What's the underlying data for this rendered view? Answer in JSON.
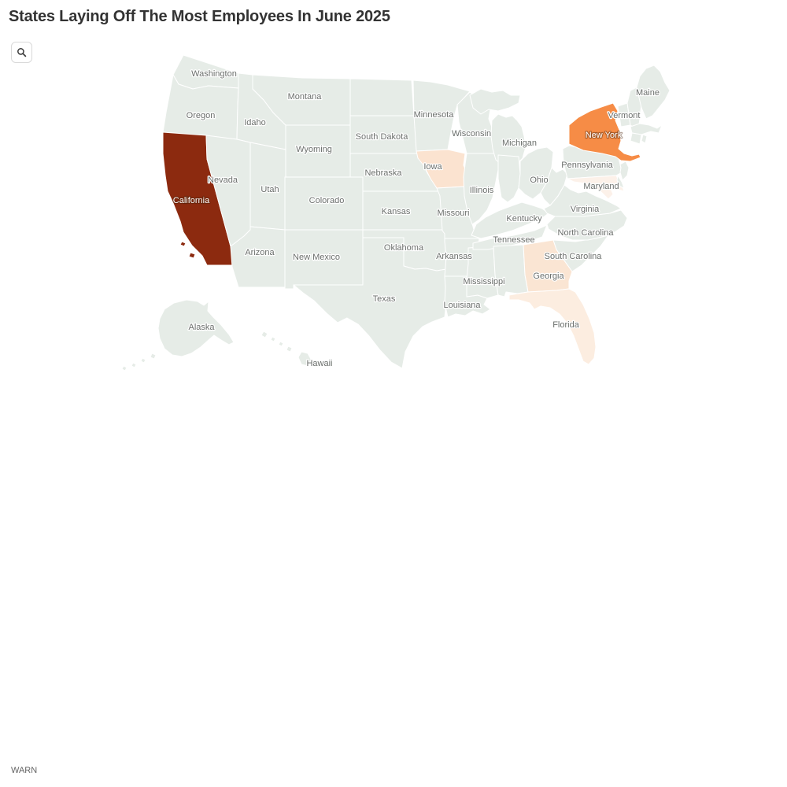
{
  "title": "States Laying Off The Most Employees In June 2025",
  "toolbar": {
    "search_icon": "magnifier"
  },
  "source": {
    "label": "WARN"
  },
  "colors": {
    "title": "#333333",
    "source_text": "#636363",
    "map_default_fill": "#E6ECE7",
    "map_border": "#FFFFFF",
    "label_text": "#6A6E6B",
    "label_halo": "#FFFFFF",
    "highlight_label_text": "#FFFFFF",
    "highlight_label_halo": "rgba(70,30,5,0.4)"
  },
  "map": {
    "states": [
      {
        "id": "WA",
        "label": "Washington"
      },
      {
        "id": "OR",
        "label": "Oregon"
      },
      {
        "id": "CA",
        "label": "California",
        "fill": "#8C2A0F",
        "label_color": "#FFFFFF"
      },
      {
        "id": "ID",
        "label": "Idaho"
      },
      {
        "id": "NV",
        "label": "Nevada"
      },
      {
        "id": "UT",
        "label": "Utah"
      },
      {
        "id": "AZ",
        "label": "Arizona"
      },
      {
        "id": "MT",
        "label": "Montana"
      },
      {
        "id": "WY",
        "label": "Wyoming"
      },
      {
        "id": "CO",
        "label": "Colorado"
      },
      {
        "id": "NM",
        "label": "New Mexico"
      },
      {
        "id": "ND",
        "label": ""
      },
      {
        "id": "SD",
        "label": "South Dakota"
      },
      {
        "id": "NE",
        "label": "Nebraska"
      },
      {
        "id": "KS",
        "label": "Kansas"
      },
      {
        "id": "OK",
        "label": "Oklahoma"
      },
      {
        "id": "TX",
        "label": "Texas"
      },
      {
        "id": "MN",
        "label": "Minnesota"
      },
      {
        "id": "IA",
        "label": "Iowa",
        "fill": "#FBE3D0"
      },
      {
        "id": "MO",
        "label": "Missouri"
      },
      {
        "id": "AR",
        "label": "Arkansas"
      },
      {
        "id": "LA",
        "label": "Louisiana"
      },
      {
        "id": "WI",
        "label": "Wisconsin"
      },
      {
        "id": "IL",
        "label": "Illinois"
      },
      {
        "id": "MS",
        "label": "Mississippi"
      },
      {
        "id": "MI",
        "label": "Michigan"
      },
      {
        "id": "IN",
        "label": ""
      },
      {
        "id": "OH",
        "label": "Ohio"
      },
      {
        "id": "KY",
        "label": "Kentucky"
      },
      {
        "id": "TN",
        "label": "Tennessee"
      },
      {
        "id": "AL",
        "label": ""
      },
      {
        "id": "GA",
        "label": "Georgia",
        "fill": "#FAE5D3"
      },
      {
        "id": "FL",
        "label": "Florida",
        "fill": "#FCEDE0"
      },
      {
        "id": "SC",
        "label": "South Carolina"
      },
      {
        "id": "NC",
        "label": "North Carolina"
      },
      {
        "id": "VA",
        "label": "Virginia"
      },
      {
        "id": "WV",
        "label": ""
      },
      {
        "id": "PA",
        "label": "Pennsylvania"
      },
      {
        "id": "NY",
        "label": "New York",
        "fill": "#F68C46",
        "label_color": "#FFFFFF"
      },
      {
        "id": "MD",
        "label": "Maryland",
        "fill": "#FCF1E9"
      },
      {
        "id": "DE",
        "label": ""
      },
      {
        "id": "NJ",
        "label": ""
      },
      {
        "id": "VT",
        "label": "Vermont"
      },
      {
        "id": "NH",
        "label": ""
      },
      {
        "id": "MA",
        "label": ""
      },
      {
        "id": "CT",
        "label": ""
      },
      {
        "id": "RI",
        "label": ""
      },
      {
        "id": "ME",
        "label": "Maine"
      },
      {
        "id": "AK",
        "label": "Alaska"
      },
      {
        "id": "HI",
        "label": "Hawaii"
      }
    ]
  },
  "chart_data": {
    "type": "heatmap",
    "subtype": "us-choropleth",
    "title": "States Laying Off The Most Employees In June 2025",
    "source_label": "WARN",
    "legend": "none shown",
    "color_scale": {
      "no_data_fill": "#E6ECE7",
      "low_fill": "#FCF1E9",
      "high_fill": "#8C2A0F"
    },
    "shaded_states": [
      {
        "state": "California",
        "shade_rank": 1,
        "intensity": "highest",
        "fill": "#8C2A0F"
      },
      {
        "state": "New York",
        "shade_rank": 2,
        "intensity": "high",
        "fill": "#F68C46"
      },
      {
        "state": "Iowa",
        "shade_rank": 3,
        "intensity": "low",
        "fill": "#FBE3D0"
      },
      {
        "state": "Georgia",
        "shade_rank": 4,
        "intensity": "low",
        "fill": "#FAE5D3"
      },
      {
        "state": "Florida",
        "shade_rank": 5,
        "intensity": "very low",
        "fill": "#FCEDE0"
      },
      {
        "state": "Maryland",
        "shade_rank": 6,
        "intensity": "lowest",
        "fill": "#FCF1E9"
      }
    ],
    "unshaded_states_meaning": "no appreciable layoffs shown (base color)"
  }
}
